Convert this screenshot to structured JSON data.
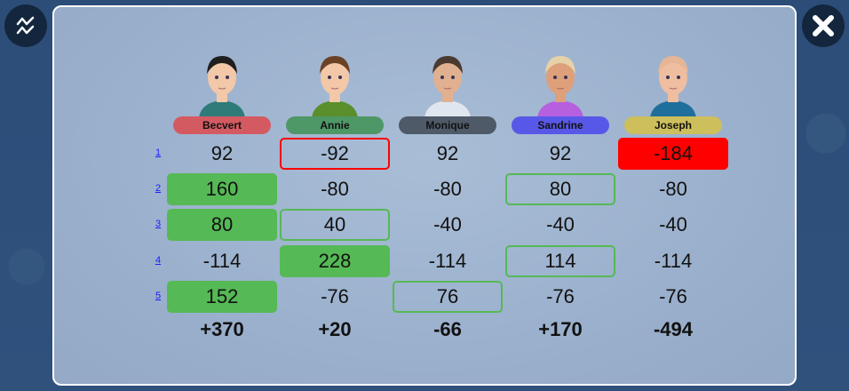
{
  "buttons": {
    "chart": "chart-icon",
    "close": "close-icon"
  },
  "players": [
    {
      "name": "Becvert",
      "color": "#d45a62",
      "shirt": "#2f7b7a",
      "hair": "#1e1e1e",
      "skin": "#f2c8a8"
    },
    {
      "name": "Annie",
      "color": "#4e9766",
      "shirt": "#5a8f2c",
      "hair": "#6b4226",
      "skin": "#f2c8a8"
    },
    {
      "name": "Monique",
      "color": "#4e5a68",
      "shirt": "#dfe6ee",
      "hair": "#4a3a30",
      "skin": "#e0b090"
    },
    {
      "name": "Sandrine",
      "color": "#5858e8",
      "shirt": "#b660e0",
      "hair": "#e6d2a8",
      "skin": "#dea07a"
    },
    {
      "name": "Joseph",
      "color": "#cdbf5c",
      "shirt": "#1f6f9c",
      "hair": "#e5b596",
      "skin": "#efbea0"
    }
  ],
  "rounds": [
    "1",
    "2",
    "3",
    "4",
    "5"
  ],
  "scores": [
    [
      {
        "v": "92",
        "s": ""
      },
      {
        "v": "-92",
        "s": "out-red"
      },
      {
        "v": "92",
        "s": ""
      },
      {
        "v": "92",
        "s": ""
      },
      {
        "v": "-184",
        "s": "fill-red"
      }
    ],
    [
      {
        "v": "160",
        "s": "fill-green"
      },
      {
        "v": "-80",
        "s": ""
      },
      {
        "v": "-80",
        "s": ""
      },
      {
        "v": "80",
        "s": "out-green"
      },
      {
        "v": "-80",
        "s": ""
      }
    ],
    [
      {
        "v": "80",
        "s": "fill-green"
      },
      {
        "v": "40",
        "s": "out-green"
      },
      {
        "v": "-40",
        "s": ""
      },
      {
        "v": "-40",
        "s": ""
      },
      {
        "v": "-40",
        "s": ""
      }
    ],
    [
      {
        "v": "-114",
        "s": ""
      },
      {
        "v": "228",
        "s": "fill-green"
      },
      {
        "v": "-114",
        "s": ""
      },
      {
        "v": "114",
        "s": "out-green"
      },
      {
        "v": "-114",
        "s": ""
      }
    ],
    [
      {
        "v": "152",
        "s": "fill-green"
      },
      {
        "v": "-76",
        "s": ""
      },
      {
        "v": "76",
        "s": "out-green"
      },
      {
        "v": "-76",
        "s": ""
      },
      {
        "v": "-76",
        "s": ""
      }
    ]
  ],
  "totals": [
    "+370",
    "+20",
    "-66",
    "+170",
    "-494"
  ]
}
